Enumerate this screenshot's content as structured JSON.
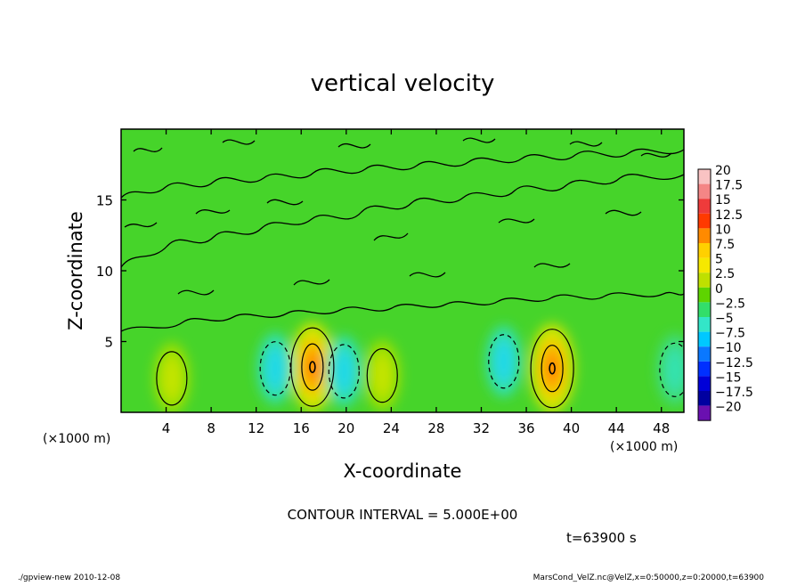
{
  "chart_data": {
    "type": "heatmap",
    "title": "vertical velocity",
    "xlabel": "X-coordinate",
    "ylabel": "Z-coordinate",
    "x_unit_left": "(×1000 m)",
    "x_unit_right": "(×1000 m)",
    "x_ticks": [
      "4",
      "8",
      "12",
      "16",
      "20",
      "24",
      "28",
      "32",
      "36",
      "40",
      "44",
      "48"
    ],
    "y_ticks": [
      "5",
      "10",
      "15"
    ],
    "xlim": [
      0,
      50
    ],
    "ylim": [
      0,
      20
    ],
    "colorbar": {
      "labels": [
        "20",
        "17.5",
        "15",
        "12.5",
        "10",
        "7.5",
        "5",
        "2.5",
        "0",
        "−2.5",
        "−5",
        "−7.5",
        "−10",
        "−12.5",
        "−15",
        "−17.5",
        "−20"
      ],
      "colors": [
        "#f9c3c3",
        "#f48686",
        "#ee3b3b",
        "#ff3a00",
        "#ff8a00",
        "#ffd000",
        "#f6e800",
        "#bfe000",
        "#5ed400",
        "#32de6a",
        "#33e6c8",
        "#00c8ff",
        "#0a78ff",
        "#0030ff",
        "#0000d8",
        "#0000a0",
        "#6a10b0"
      ]
    },
    "features": [
      {
        "name": "updraft",
        "x": 17.0,
        "z": 3.2,
        "w": 12.0
      },
      {
        "name": "updraft",
        "x": 38.3,
        "z": 3.1,
        "w": 12.0
      },
      {
        "name": "updraft",
        "x": 4.5,
        "z": 2.4,
        "w": 5.5
      },
      {
        "name": "updraft",
        "x": 23.2,
        "z": 2.6,
        "w": 5.5
      },
      {
        "name": "downdraft",
        "x": 13.7,
        "z": 3.1,
        "w": -5.5
      },
      {
        "name": "downdraft",
        "x": 19.8,
        "z": 2.9,
        "w": -5.0
      },
      {
        "name": "downdraft",
        "x": 34.0,
        "z": 3.6,
        "w": -5.0
      },
      {
        "name": "downdraft",
        "x": 49.2,
        "z": 3.0,
        "w": -4.5
      }
    ],
    "grid": false,
    "legend": "colorbar-right"
  },
  "contour_interval_text": "CONTOUR INTERVAL = 5.000E+00",
  "time_text": "t=63900 s",
  "footer_left": "./gpview-new   2010-12-08",
  "footer_right": "MarsCond_VelZ.nc@VelZ,x=0:50000,z=0:20000,t=63900"
}
